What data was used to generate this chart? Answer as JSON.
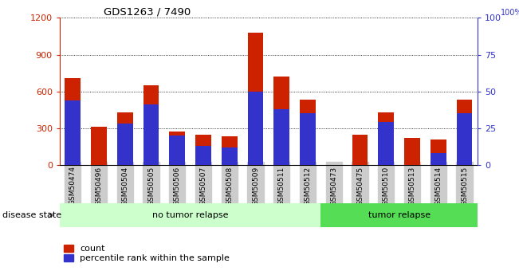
{
  "title": "GDS1263 / 7490",
  "categories": [
    "GSM50474",
    "GSM50496",
    "GSM50504",
    "GSM50505",
    "GSM50506",
    "GSM50507",
    "GSM50508",
    "GSM50509",
    "GSM50511",
    "GSM50512",
    "GSM50473",
    "GSM50475",
    "GSM50510",
    "GSM50513",
    "GSM50514",
    "GSM50515"
  ],
  "count_values": [
    710,
    315,
    430,
    650,
    270,
    245,
    235,
    1080,
    720,
    530,
    0,
    250,
    430,
    220,
    210,
    530
  ],
  "percentile_values": [
    44,
    0,
    28,
    41,
    20,
    13,
    12,
    50,
    38,
    35,
    0,
    0,
    29,
    0,
    8,
    35
  ],
  "group1_label": "no tumor relapse",
  "group2_label": "tumor relapse",
  "group1_count": 10,
  "group2_count": 6,
  "ylim_left": [
    0,
    1200
  ],
  "ylim_right": [
    0,
    100
  ],
  "yticks_left": [
    0,
    300,
    600,
    900,
    1200
  ],
  "yticks_right": [
    0,
    25,
    50,
    75,
    100
  ],
  "bar_color_red": "#cc2200",
  "bar_color_blue": "#3333cc",
  "group1_bg": "#ccffcc",
  "group2_bg": "#55dd55",
  "label_bg": "#cccccc",
  "disease_state_label": "disease state",
  "legend_count": "count",
  "legend_percentile": "percentile rank within the sample"
}
